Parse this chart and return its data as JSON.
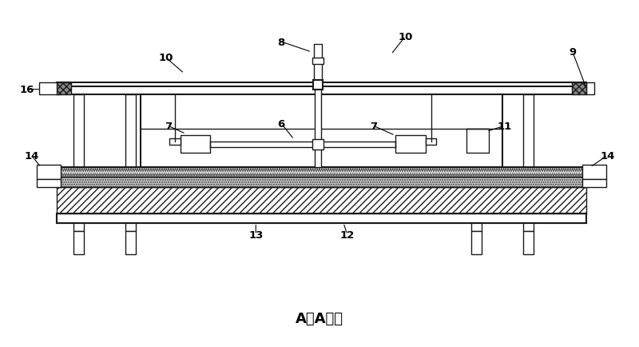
{
  "bg_color": "#ffffff",
  "line_color": "#1a1a1a",
  "title_text": "A－A视图",
  "title_fontsize": 13,
  "fig_width": 8.0,
  "fig_height": 4.35,
  "dpi": 100
}
